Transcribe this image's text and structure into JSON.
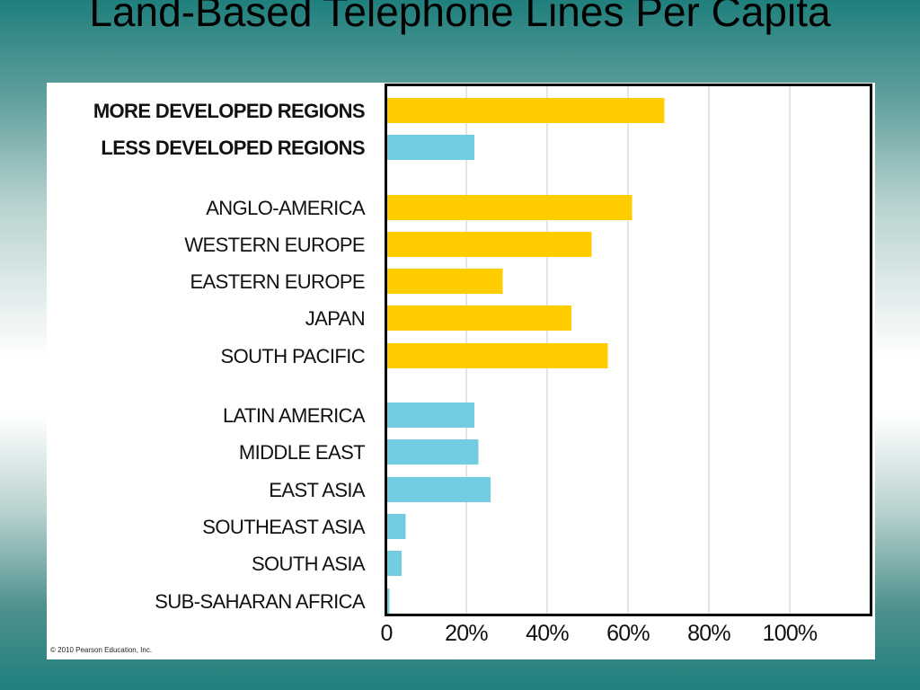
{
  "slide": {
    "title": "Land-Based Telephone Lines Per Capita"
  },
  "copyright": "© 2010 Pearson Education, Inc.",
  "colors": {
    "more_developed": "#ffcc00",
    "less_developed": "#72cde3",
    "gridline": "#c8c8c8",
    "frame": "#000000"
  },
  "chart_data": {
    "type": "bar",
    "orientation": "horizontal",
    "categories": [
      {
        "label": "MORE DEVELOPED REGIONS",
        "value": 69,
        "group": "more",
        "bold": true
      },
      {
        "label": "LESS DEVELOPED REGIONS",
        "value": 22,
        "group": "less",
        "bold": true
      },
      {
        "label": "ANGLO-AMERICA",
        "value": 61,
        "group": "more",
        "bold": false
      },
      {
        "label": "WESTERN EUROPE",
        "value": 51,
        "group": "more",
        "bold": false
      },
      {
        "label": "EASTERN EUROPE",
        "value": 29,
        "group": "more",
        "bold": false
      },
      {
        "label": "JAPAN",
        "value": 46,
        "group": "more",
        "bold": false
      },
      {
        "label": "SOUTH PACIFIC",
        "value": 55,
        "group": "more",
        "bold": false
      },
      {
        "label": "LATIN AMERICA",
        "value": 22,
        "group": "less",
        "bold": false
      },
      {
        "label": "MIDDLE EAST",
        "value": 23,
        "group": "less",
        "bold": false
      },
      {
        "label": "EAST ASIA",
        "value": 26,
        "group": "less",
        "bold": false
      },
      {
        "label": "SOUTHEAST ASIA",
        "value": 5,
        "group": "less",
        "bold": false
      },
      {
        "label": "SOUTH ASIA",
        "value": 4,
        "group": "less",
        "bold": false
      },
      {
        "label": "SUB-SAHARAN AFRICA",
        "value": 1,
        "group": "less",
        "bold": false
      }
    ],
    "x_ticks": [
      0,
      20,
      40,
      60,
      80,
      100
    ],
    "x_tick_labels": [
      "0",
      "20%",
      "40%",
      "60%",
      "80%",
      "100%"
    ],
    "xlim": [
      0,
      120
    ],
    "grid": true
  }
}
